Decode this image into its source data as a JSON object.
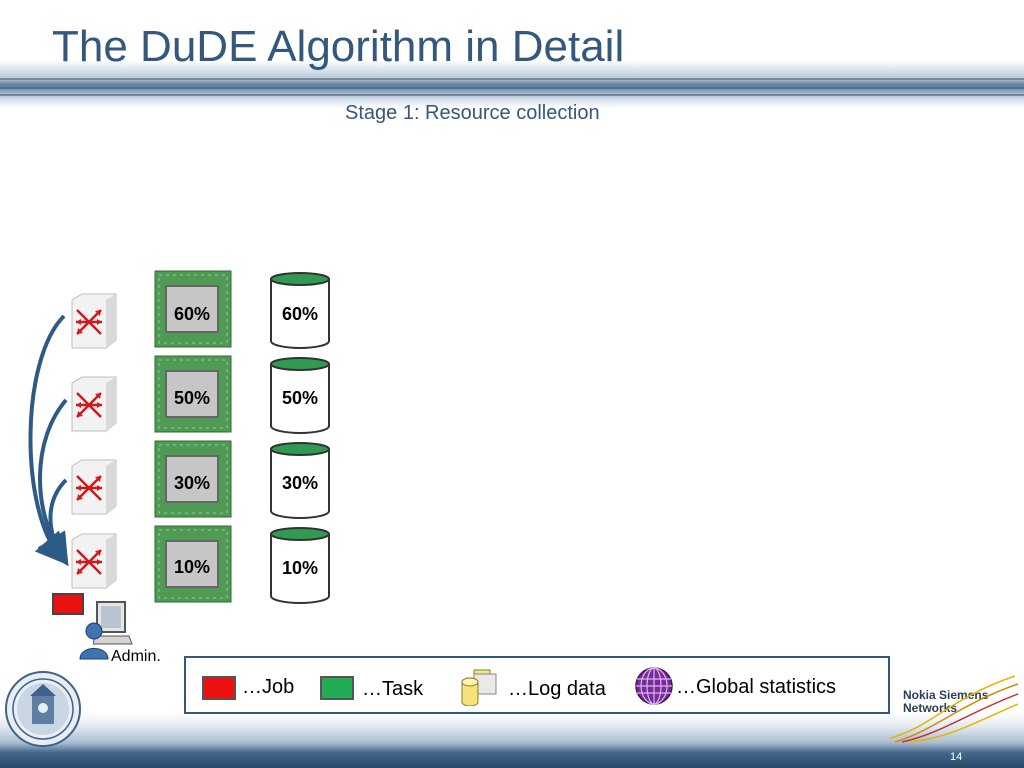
{
  "slide": {
    "title": "The DuDE Algorithm in Detail",
    "subtitle": "Stage 1: Resource collection",
    "page_number": "14"
  },
  "nodes": [
    {
      "cpu_load": "60%",
      "storage": "60%"
    },
    {
      "cpu_load": "50%",
      "storage": "50%"
    },
    {
      "cpu_load": "30%",
      "storage": "30%"
    },
    {
      "cpu_load": "10%",
      "storage": "10%"
    }
  ],
  "admin": {
    "label": "Admin."
  },
  "legend": {
    "job": "…Job",
    "task": "…Task",
    "log_data": "…Log data",
    "global_statistics": "…Global statistics"
  },
  "logo": {
    "line1": "Nokia Siemens",
    "line2": "Networks"
  },
  "colors": {
    "title": "#34577d",
    "job": "#ee1111",
    "task": "#22aa55",
    "cpu_board": "#4f9a55",
    "switch_arrow": "#d01818",
    "globe": "#7a2a9a"
  }
}
